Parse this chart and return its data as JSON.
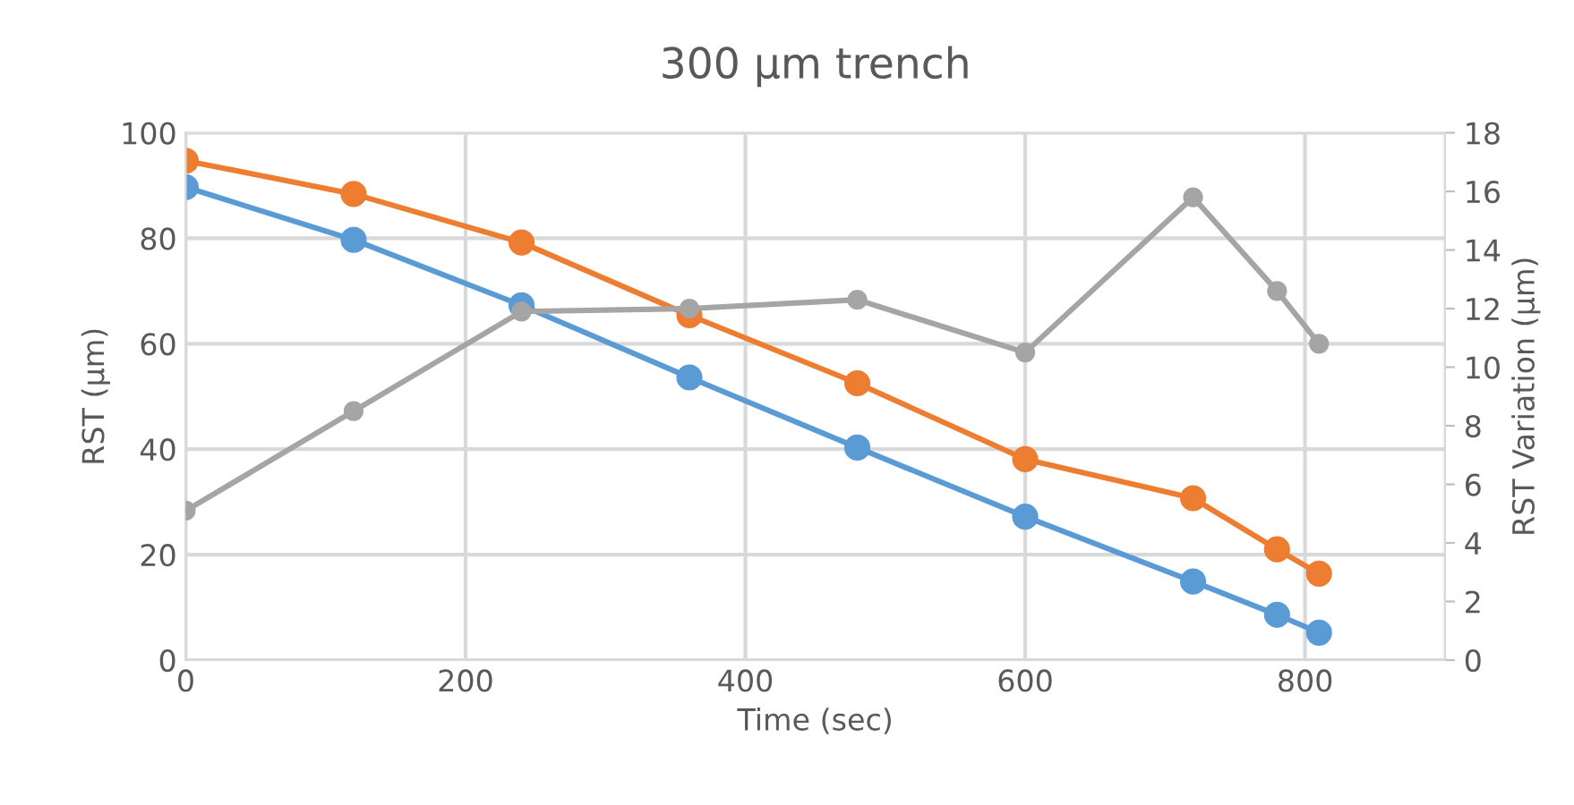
{
  "chart_data": {
    "type": "line",
    "title": "300 µm trench",
    "xlabel": "Time (sec)",
    "ylabel": "RST (µm)",
    "y2label": "RST Variation (µm)",
    "x": [
      0,
      120,
      240,
      360,
      480,
      600,
      720,
      780,
      810
    ],
    "series": [
      {
        "color": "#5b9bd5",
        "values": [
          89.7,
          79.7,
          67.3,
          53.6,
          40.3,
          27.2,
          14.9,
          8.6,
          5.2
        ]
      },
      {
        "color": "#ed7d31",
        "values": [
          94.7,
          88.4,
          79.2,
          65.4,
          52.5,
          38.1,
          30.7,
          21.0,
          16.4
        ]
      },
      {
        "color": "#a5a5a5",
        "axis": "y2",
        "values": [
          5.1,
          8.5,
          11.9,
          12.0,
          12.3,
          10.5,
          15.8,
          12.6,
          10.8
        ]
      }
    ],
    "xlim": [
      0,
      900
    ],
    "xticks": [
      0,
      200,
      400,
      600,
      800
    ],
    "ylim": [
      0,
      100
    ],
    "yticks": [
      0,
      20,
      40,
      60,
      80,
      100
    ],
    "y2lim": [
      0,
      18
    ],
    "y2ticks": [
      0,
      2,
      4,
      6,
      8,
      10,
      12,
      14,
      16,
      18
    ],
    "grid": true,
    "marker": "circle",
    "line_style": "solid"
  }
}
